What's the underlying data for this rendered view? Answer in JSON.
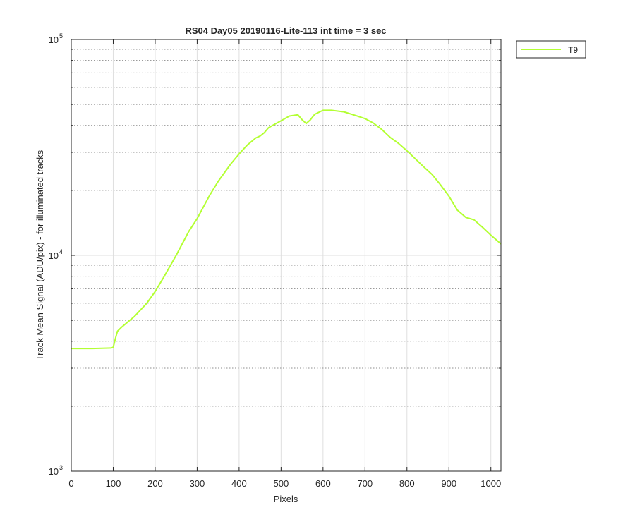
{
  "chart_data": {
    "type": "line",
    "title": "RS04 Day05 20190116-Lite-113 int time = 3 sec",
    "xlabel": "Pixels",
    "ylabel": "Track Mean Signal (ADU/pix) - for illuminated tracks",
    "xlim": [
      0,
      1024
    ],
    "ylim": [
      1000,
      100000
    ],
    "yscale": "log",
    "grid": true,
    "minor_grid": true,
    "legend_position": "outside-top-right",
    "x_ticks": [
      0,
      100,
      200,
      300,
      400,
      500,
      600,
      700,
      800,
      900,
      1000
    ],
    "y_ticks": [
      {
        "value": 1000,
        "base": "10",
        "exp": "3"
      },
      {
        "value": 10000,
        "base": "10",
        "exp": "4"
      },
      {
        "value": 100000,
        "base": "10",
        "exp": "5"
      }
    ],
    "series": [
      {
        "name": "T9",
        "color": "#b3ff33",
        "x": [
          0,
          50,
          95,
          100,
          105,
          110,
          120,
          150,
          180,
          200,
          220,
          250,
          280,
          300,
          330,
          350,
          380,
          400,
          420,
          440,
          450,
          460,
          470,
          480,
          500,
          520,
          540,
          550,
          560,
          570,
          580,
          600,
          620,
          650,
          680,
          700,
          720,
          740,
          760,
          780,
          800,
          820,
          840,
          860,
          880,
          900,
          920,
          930,
          940,
          960,
          980,
          1000,
          1024
        ],
        "y": [
          3700,
          3700,
          3720,
          3750,
          4100,
          4450,
          4650,
          5200,
          6000,
          6800,
          7900,
          10000,
          12900,
          14800,
          19000,
          22000,
          26500,
          29500,
          32500,
          35000,
          35700,
          37000,
          39000,
          40000,
          42000,
          44200,
          44800,
          42500,
          40800,
          42500,
          45000,
          47000,
          47000,
          46200,
          44300,
          43000,
          41000,
          38300,
          35200,
          33000,
          30500,
          28000,
          25700,
          23700,
          21200,
          18800,
          16200,
          15600,
          15000,
          14600,
          13500,
          12400,
          11300
        ]
      }
    ]
  }
}
